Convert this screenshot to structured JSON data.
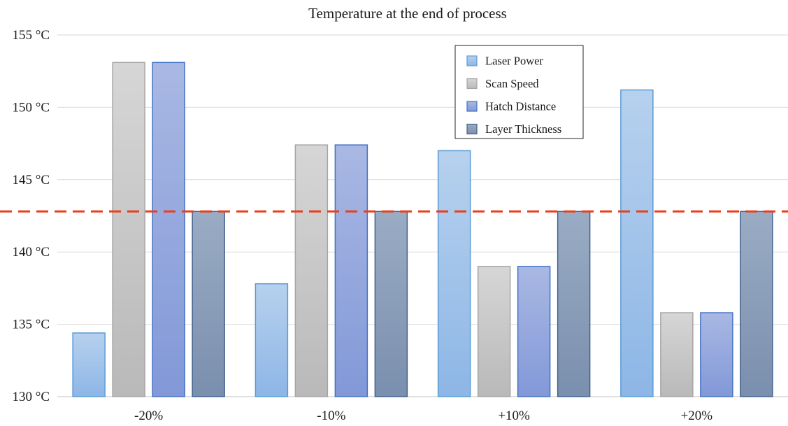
{
  "chart_data": {
    "type": "bar",
    "title": "Temperature at the end of process",
    "xlabel": "",
    "ylabel": "",
    "categories": [
      "-20%",
      "-10%",
      "+10%",
      "+20%"
    ],
    "y_ticks": [
      "130 °C",
      "135 °C",
      "140 °C",
      "145 °C",
      "150 °C",
      "155 °C"
    ],
    "ylim": [
      130,
      155
    ],
    "grid": true,
    "legend_position": "top-right",
    "reference_line": {
      "value": 142.8,
      "style": "dashed",
      "color": "#e8401c"
    },
    "series": [
      {
        "name": "Laser Power",
        "values": [
          134.4,
          137.8,
          147.0,
          151.2
        ],
        "color_top": "#b7d1ee",
        "color_bottom": "#8db6e6",
        "stroke": "#5b9bd5"
      },
      {
        "name": "Scan Speed",
        "values": [
          153.1,
          147.4,
          139.0,
          135.8
        ],
        "color_top": "#d6d6d6",
        "color_bottom": "#b9b9b9",
        "stroke": "#a5a5a5"
      },
      {
        "name": "Hatch Distance",
        "values": [
          153.1,
          147.4,
          139.0,
          135.8
        ],
        "color_top": "#a9b8e3",
        "color_bottom": "#8298d8",
        "stroke": "#4472c4"
      },
      {
        "name": "Layer Thickness",
        "values": [
          142.8,
          142.8,
          142.8,
          142.8
        ],
        "color_top": "#9aacc4",
        "color_bottom": "#7a8fae",
        "stroke": "#44628e"
      }
    ]
  }
}
